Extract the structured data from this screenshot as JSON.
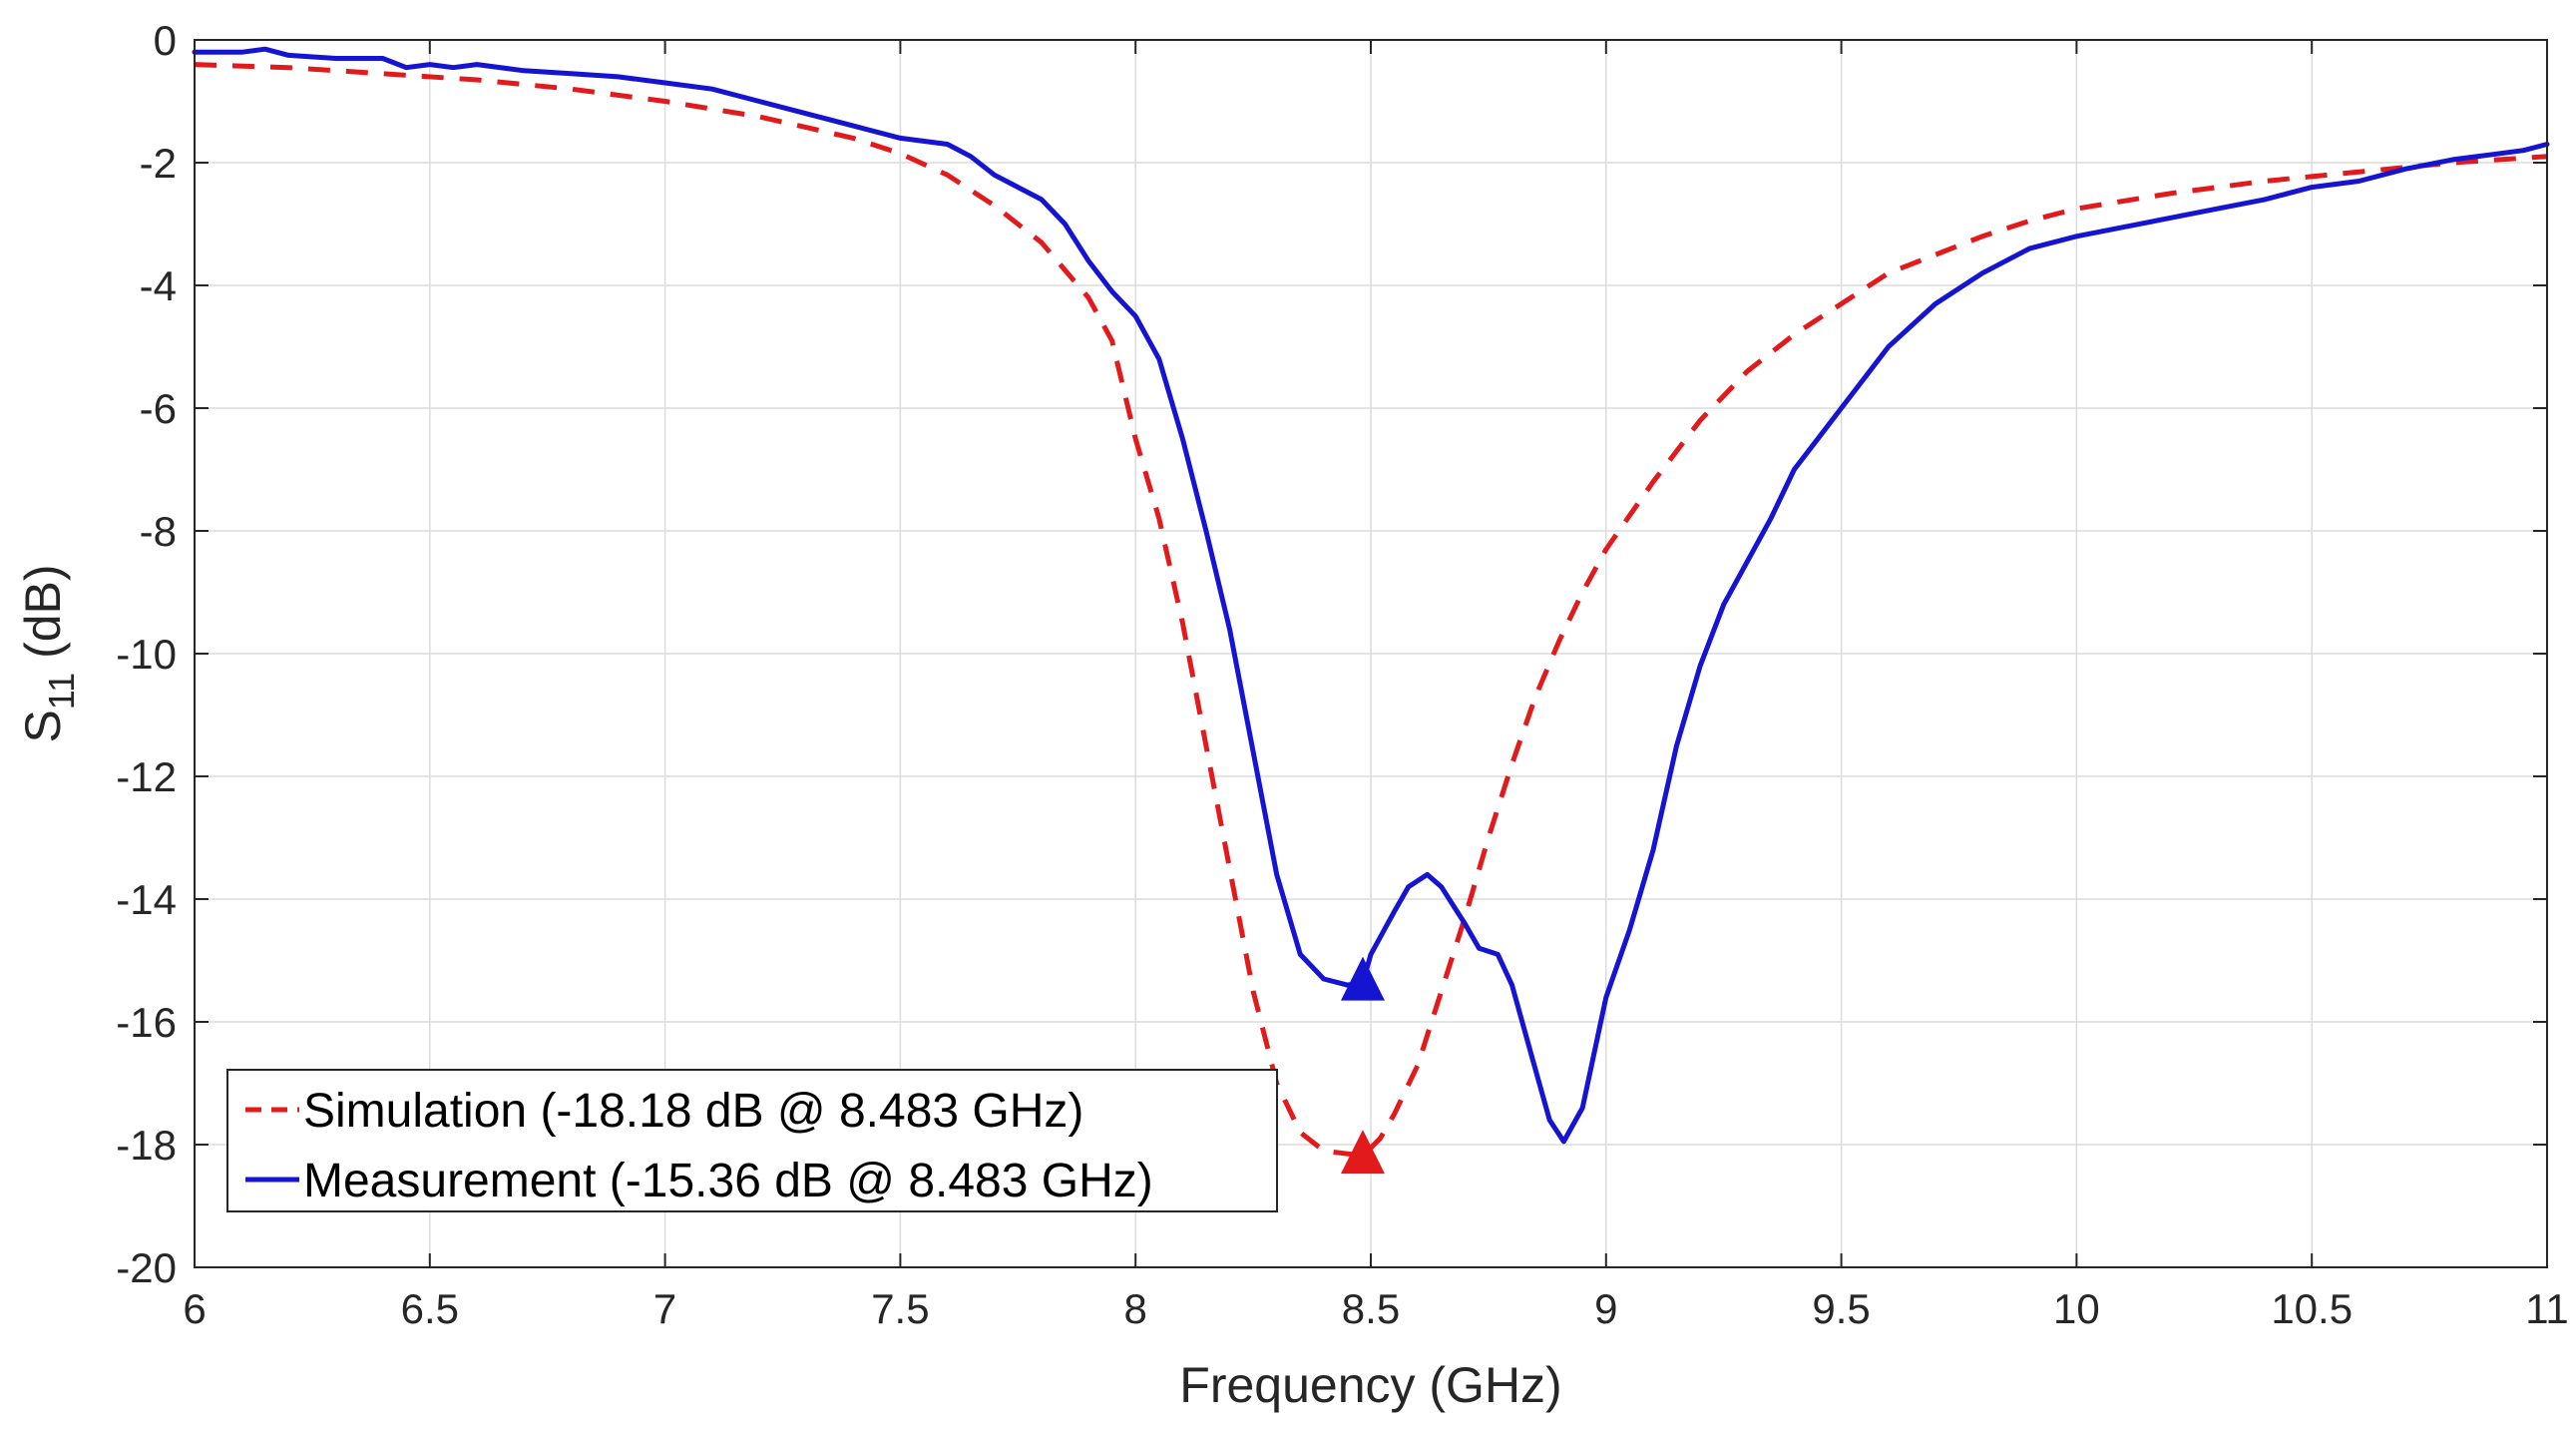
{
  "chart_data": {
    "type": "line",
    "title": "",
    "xlabel": "Frequency (GHz)",
    "ylabel": {
      "main": "S",
      "subscript": "11",
      "suffix": " (dB)"
    },
    "xlim": [
      6,
      11
    ],
    "ylim": [
      -20,
      0
    ],
    "xticks": [
      6,
      6.5,
      7,
      7.5,
      8,
      8.5,
      9,
      9.5,
      10,
      10.5,
      11
    ],
    "xtick_labels": [
      "6",
      "6.5",
      "7",
      "7.5",
      "8",
      "8.5",
      "9",
      "9.5",
      "10",
      "10.5",
      "11"
    ],
    "yticks": [
      0,
      -2,
      -4,
      -6,
      -8,
      -10,
      -12,
      -14,
      -16,
      -18,
      -20
    ],
    "ytick_labels": [
      "0",
      "-2",
      "-4",
      "-6",
      "-8",
      "-10",
      "-12",
      "-14",
      "-16",
      "-18",
      "-20"
    ],
    "grid": true,
    "legend_position": "bottom-left",
    "series": [
      {
        "name": "Simulation (-18.18 dB @ 8.483 GHz)",
        "color": "#e31a1c",
        "style": "dashed",
        "marker": {
          "x": 8.483,
          "y": -18.18,
          "shape": "triangle"
        },
        "x": [
          6.0,
          6.2,
          6.4,
          6.6,
          6.8,
          7.0,
          7.2,
          7.4,
          7.5,
          7.6,
          7.7,
          7.8,
          7.9,
          7.95,
          8.0,
          8.05,
          8.1,
          8.15,
          8.2,
          8.25,
          8.3,
          8.35,
          8.4,
          8.45,
          8.483,
          8.52,
          8.55,
          8.6,
          8.65,
          8.7,
          8.75,
          8.8,
          8.85,
          8.9,
          8.95,
          9.0,
          9.1,
          9.2,
          9.3,
          9.4,
          9.5,
          9.6,
          9.7,
          9.8,
          9.9,
          10.0,
          10.2,
          10.4,
          10.6,
          10.8,
          11.0
        ],
        "y": [
          -0.4,
          -0.45,
          -0.55,
          -0.65,
          -0.8,
          -1.0,
          -1.25,
          -1.6,
          -1.85,
          -2.2,
          -2.7,
          -3.3,
          -4.2,
          -4.9,
          -6.5,
          -7.8,
          -9.5,
          -11.5,
          -13.5,
          -15.5,
          -17.0,
          -17.8,
          -18.1,
          -18.15,
          -18.18,
          -17.9,
          -17.5,
          -16.7,
          -15.5,
          -14.3,
          -13.0,
          -11.8,
          -10.7,
          -9.8,
          -9.0,
          -8.3,
          -7.2,
          -6.2,
          -5.4,
          -4.8,
          -4.3,
          -3.8,
          -3.5,
          -3.2,
          -2.95,
          -2.75,
          -2.5,
          -2.3,
          -2.15,
          -2.0,
          -1.9
        ]
      },
      {
        "name": "Measurement (-15.36 dB @ 8.483 GHz)",
        "color": "#1414d2",
        "style": "solid",
        "marker": {
          "x": 8.483,
          "y": -15.36,
          "shape": "triangle"
        },
        "x": [
          6.0,
          6.1,
          6.15,
          6.2,
          6.3,
          6.4,
          6.45,
          6.5,
          6.55,
          6.6,
          6.7,
          6.8,
          6.9,
          7.0,
          7.1,
          7.2,
          7.3,
          7.4,
          7.5,
          7.6,
          7.65,
          7.7,
          7.75,
          7.8,
          7.85,
          7.9,
          7.95,
          8.0,
          8.05,
          8.1,
          8.15,
          8.2,
          8.25,
          8.3,
          8.35,
          8.4,
          8.45,
          8.483,
          8.5,
          8.55,
          8.58,
          8.62,
          8.65,
          8.7,
          8.73,
          8.77,
          8.8,
          8.84,
          8.88,
          8.91,
          8.95,
          9.0,
          9.05,
          9.1,
          9.15,
          9.2,
          9.25,
          9.3,
          9.35,
          9.4,
          9.45,
          9.5,
          9.55,
          9.6,
          9.7,
          9.8,
          9.9,
          10.0,
          10.1,
          10.2,
          10.3,
          10.4,
          10.5,
          10.6,
          10.7,
          10.8,
          10.9,
          10.95,
          11.0
        ],
        "y": [
          -0.2,
          -0.2,
          -0.15,
          -0.25,
          -0.3,
          -0.3,
          -0.45,
          -0.4,
          -0.45,
          -0.4,
          -0.5,
          -0.55,
          -0.6,
          -0.7,
          -0.8,
          -1.0,
          -1.2,
          -1.4,
          -1.6,
          -1.7,
          -1.9,
          -2.2,
          -2.4,
          -2.6,
          -3.0,
          -3.6,
          -4.1,
          -4.5,
          -5.2,
          -6.5,
          -8.0,
          -9.6,
          -11.6,
          -13.6,
          -14.9,
          -15.3,
          -15.4,
          -15.36,
          -14.9,
          -14.2,
          -13.8,
          -13.6,
          -13.8,
          -14.4,
          -14.8,
          -14.9,
          -15.4,
          -16.5,
          -17.6,
          -17.95,
          -17.4,
          -15.6,
          -14.5,
          -13.2,
          -11.5,
          -10.2,
          -9.2,
          -8.5,
          -7.8,
          -7.0,
          -6.5,
          -6.0,
          -5.5,
          -5.0,
          -4.3,
          -3.8,
          -3.4,
          -3.2,
          -3.05,
          -2.9,
          -2.75,
          -2.6,
          -2.4,
          -2.3,
          -2.1,
          -1.95,
          -1.85,
          -1.8,
          -1.7
        ]
      }
    ]
  }
}
